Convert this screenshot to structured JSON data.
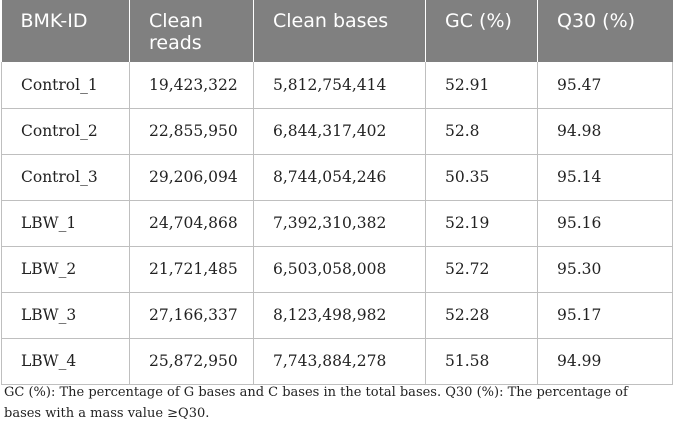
{
  "table": {
    "headers": [
      "BMK-ID",
      "Clean reads",
      "Clean bases",
      "GC (%)",
      "Q30 (%)"
    ],
    "rows": [
      [
        "Control_1",
        "19,423,322",
        "5,812,754,414",
        "52.91",
        "95.47"
      ],
      [
        "Control_2",
        "22,855,950",
        "6,844,317,402",
        "52.8",
        "94.98"
      ],
      [
        "Control_3",
        "29,206,094",
        "8,744,054,246",
        "50.35",
        "95.14"
      ],
      [
        "LBW_1",
        "24,704,868",
        "7,392,310,382",
        "52.19",
        "95.16"
      ],
      [
        "LBW_2",
        "21,721,485",
        "6,503,058,008",
        "52.72",
        "95.30"
      ],
      [
        "LBW_3",
        "27,166,337",
        "8,123,498,982",
        "52.28",
        "95.17"
      ],
      [
        "LBW_4",
        "25,872,950",
        "7,743,884,278",
        "51.58",
        "94.99"
      ]
    ]
  },
  "footnote": "GC (%): The percentage of G bases and C bases in the total bases. Q30 (%): The percentage of bases with a mass value ≥Q30.",
  "colors": {
    "header_bg": "#808080",
    "header_text": "#ffffff",
    "border": "#bfbfbf"
  }
}
